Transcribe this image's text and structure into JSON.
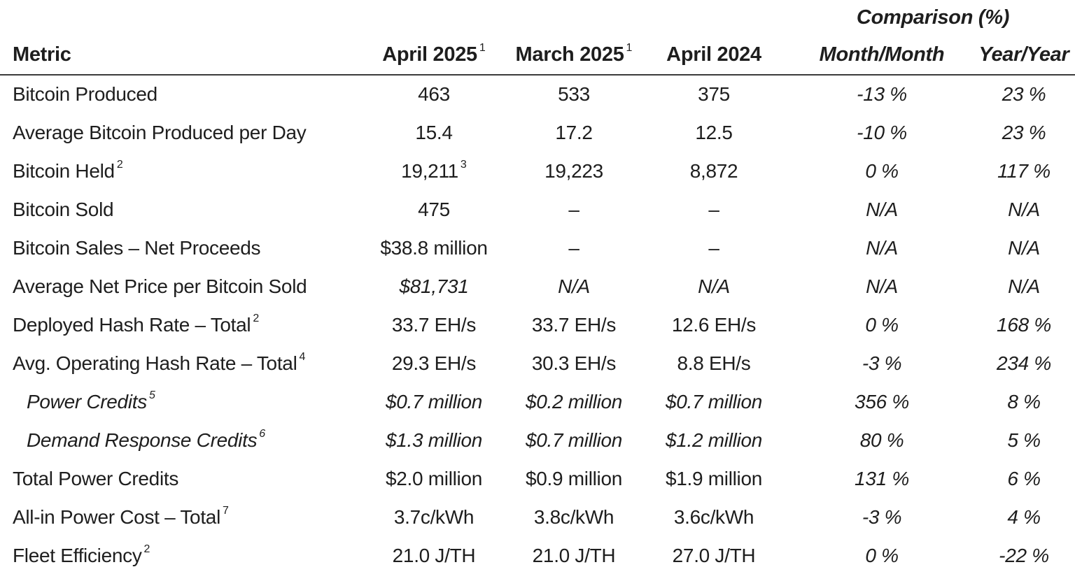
{
  "table": {
    "comparison_group_label": "Comparison (%)",
    "columns": {
      "metric": "Metric",
      "apr25": "April 2025",
      "apr25_sup": "1",
      "mar25": "March 2025",
      "mar25_sup": "1",
      "apr24": "April 2024",
      "mm": "Month/Month",
      "yy": "Year/Year"
    },
    "rows": [
      {
        "label": "Bitcoin Produced",
        "c1": "463",
        "c2": "533",
        "c3": "375",
        "mm": "-13 %",
        "yy": "23 %"
      },
      {
        "label": "Average Bitcoin Produced per Day",
        "c1": "15.4",
        "c2": "17.2",
        "c3": "12.5",
        "mm": "-10 %",
        "yy": "23 %"
      },
      {
        "label": "Bitcoin Held",
        "label_sup": "2",
        "c1": "19,211",
        "c1_sup": "3",
        "c2": "19,223",
        "c3": "8,872",
        "mm": "0 %",
        "yy": "117 %"
      },
      {
        "label": "Bitcoin Sold",
        "c1": "475",
        "c2": "–",
        "c3": "–",
        "mm": "N/A",
        "yy": "N/A"
      },
      {
        "label": "Bitcoin Sales – Net Proceeds",
        "c1": "$38.8 million",
        "c2": "–",
        "c3": "–",
        "mm": "N/A",
        "yy": "N/A"
      },
      {
        "label": "Average Net Price per Bitcoin Sold",
        "c1": "$81,731",
        "c2": "N/A",
        "c3": "N/A",
        "mm": "N/A",
        "yy": "N/A"
      },
      {
        "label": "Deployed Hash Rate – Total",
        "label_sup": "2",
        "c1": "33.7 EH/s",
        "c2": "33.7 EH/s",
        "c3": "12.6 EH/s",
        "mm": "0 %",
        "yy": "168 %"
      },
      {
        "label": "Avg. Operating Hash Rate – Total",
        "label_sup": "4",
        "c1": "29.3 EH/s",
        "c2": "30.3 EH/s",
        "c3": "8.8 EH/s",
        "mm": "-3 %",
        "yy": "234 %"
      },
      {
        "label": "Power Credits",
        "label_sup": "5",
        "c1": "$0.7 million",
        "c2": "$0.2 million",
        "c3": "$0.7 million",
        "mm": "356 %",
        "yy": "8 %"
      },
      {
        "label": "Demand Response Credits",
        "label_sup": "6",
        "c1": "$1.3 million",
        "c2": "$0.7 million",
        "c3": "$1.2 million",
        "mm": "80 %",
        "yy": "5 %"
      },
      {
        "label": "Total Power Credits",
        "c1": "$2.0 million",
        "c2": "$0.9 million",
        "c3": "$1.9 million",
        "mm": "131 %",
        "yy": "6 %"
      },
      {
        "label": "All-in Power Cost – Total",
        "label_sup": "7",
        "c1": "3.7c/kWh",
        "c2": "3.8c/kWh",
        "c3": "3.6c/kWh",
        "mm": "-3 %",
        "yy": "4 %"
      },
      {
        "label": "Fleet Efficiency",
        "label_sup": "2",
        "c1": "21.0 J/TH",
        "c2": "21.0 J/TH",
        "c3": "27.0 J/TH",
        "mm": "0 %",
        "yy": "-22 %"
      }
    ]
  }
}
